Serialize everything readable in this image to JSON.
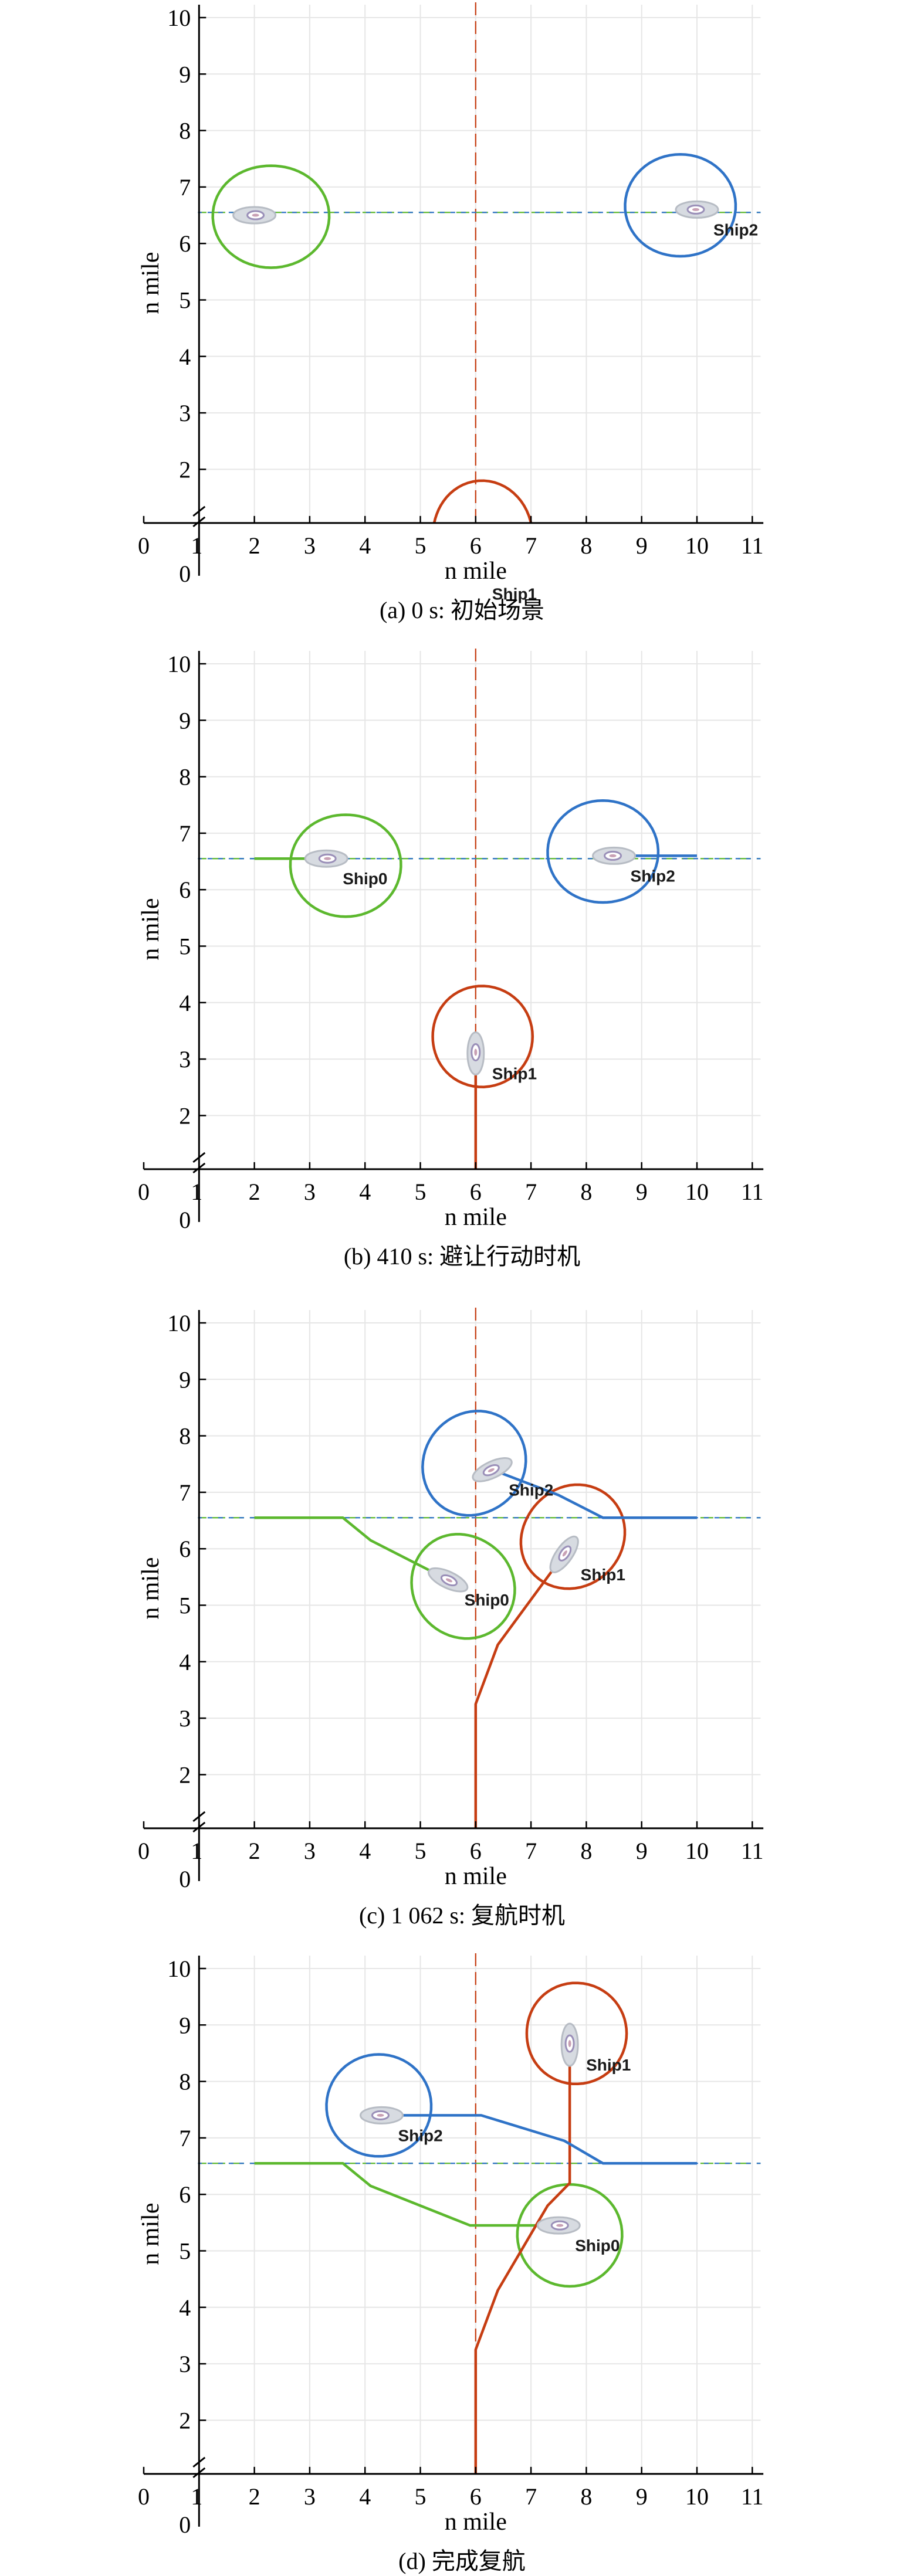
{
  "colors": {
    "ship0": "#5cb82e",
    "ship1": "#c63d12",
    "ship2": "#2f73c7",
    "grid": "#e6e6e6",
    "axis": "#000000",
    "vessel": "#b7bcc4"
  },
  "chart_data": [
    {
      "type": "scatter",
      "caption": "(a) 0 s: 初始场景",
      "xlabel": "n mile",
      "ylabel": "n mile",
      "xlim": [
        0,
        11.2
      ],
      "ylim": [
        0,
        10.2
      ],
      "x_ticks": [
        "0",
        "1",
        "2",
        "3",
        "4",
        "5",
        "6",
        "7",
        "8",
        "9",
        "10",
        "11"
      ],
      "y_ticks": [
        "0",
        "2",
        "3",
        "4",
        "5",
        "6",
        "7",
        "8",
        "9",
        "10"
      ],
      "grid": true,
      "reference_lines": [
        {
          "orientation": "vertical",
          "value": 6,
          "color": "#c63d12",
          "style": "dashed"
        },
        {
          "orientation": "horizontal",
          "value": 6.55,
          "color": "#5cb82e",
          "style": "dashed"
        },
        {
          "orientation": "horizontal",
          "value": 6.55,
          "color": "#2f73c7",
          "style": "dashed"
        }
      ],
      "series": [
        {
          "name": "Ship0",
          "show_label": false,
          "position": [
            2.0,
            6.5
          ],
          "heading": 90,
          "domain_center": [
            2.3,
            6.55
          ],
          "domain_rx": 1.0,
          "domain_ry": 0.95,
          "track": []
        },
        {
          "name": "Ship1",
          "show_label": true,
          "position": [
            6.0,
            0.15
          ],
          "heading": 0,
          "domain_center": [
            6.05,
            0.8
          ],
          "domain_rx": 0.95,
          "domain_ry": 0.95,
          "track": []
        },
        {
          "name": "Ship2",
          "show_label": true,
          "position": [
            10.0,
            6.6
          ],
          "heading": 270,
          "domain_center": [
            9.7,
            6.6
          ],
          "domain_rx": 0.95,
          "domain_ry": 0.95,
          "track": []
        }
      ]
    },
    {
      "type": "scatter",
      "caption": "(b) 410 s: 避让行动时机",
      "xlabel": "n mile",
      "ylabel": "n mile",
      "xlim": [
        0,
        11.2
      ],
      "ylim": [
        0,
        10.2
      ],
      "x_ticks": [
        "0",
        "1",
        "2",
        "3",
        "4",
        "5",
        "6",
        "7",
        "8",
        "9",
        "10",
        "11"
      ],
      "y_ticks": [
        "0",
        "2",
        "3",
        "4",
        "5",
        "6",
        "7",
        "8",
        "9",
        "10"
      ],
      "grid": true,
      "reference_lines": [
        {
          "orientation": "vertical",
          "value": 6,
          "color": "#c63d12",
          "style": "dashed"
        },
        {
          "orientation": "horizontal",
          "value": 6.55,
          "color": "#5cb82e",
          "style": "dashed"
        },
        {
          "orientation": "horizontal",
          "value": 6.55,
          "color": "#2f73c7",
          "style": "dashed"
        }
      ],
      "series": [
        {
          "name": "Ship0",
          "show_label": true,
          "position": [
            3.3,
            6.55
          ],
          "heading": 90,
          "domain_center": [
            3.65,
            6.5
          ],
          "domain_rx": 0.95,
          "domain_ry": 0.95,
          "track": [
            [
              2.0,
              6.55
            ],
            [
              3.3,
              6.55
            ]
          ]
        },
        {
          "name": "Ship1",
          "show_label": true,
          "position": [
            6.0,
            3.1
          ],
          "heading": 0,
          "domain_center": [
            6.05,
            3.4
          ],
          "domain_rx": 0.95,
          "domain_ry": 0.85,
          "track": [
            [
              6.0,
              0.15
            ],
            [
              6.0,
              3.1
            ]
          ]
        },
        {
          "name": "Ship2",
          "show_label": true,
          "position": [
            8.5,
            6.6
          ],
          "heading": 270,
          "domain_center": [
            8.3,
            6.6
          ],
          "domain_rx": 0.95,
          "domain_ry": 0.95,
          "track": [
            [
              10.0,
              6.6
            ],
            [
              8.5,
              6.6
            ]
          ]
        }
      ]
    },
    {
      "type": "scatter",
      "caption": "(c) 1 062 s: 复航时机",
      "xlabel": "n mile",
      "ylabel": "n mile",
      "xlim": [
        0,
        11.2
      ],
      "ylim": [
        0,
        10.2
      ],
      "x_ticks": [
        "0",
        "1",
        "2",
        "3",
        "4",
        "5",
        "6",
        "7",
        "8",
        "9",
        "10",
        "11"
      ],
      "y_ticks": [
        "0",
        "2",
        "3",
        "4",
        "5",
        "6",
        "7",
        "8",
        "9",
        "10"
      ],
      "grid": true,
      "reference_lines": [
        {
          "orientation": "vertical",
          "value": 6,
          "color": "#c63d12",
          "style": "dashed"
        },
        {
          "orientation": "horizontal",
          "value": 6.55,
          "color": "#5cb82e",
          "style": "dashed"
        },
        {
          "orientation": "horizontal",
          "value": 6.55,
          "color": "#2f73c7",
          "style": "dashed"
        }
      ],
      "series": [
        {
          "name": "Ship0",
          "show_label": true,
          "position": [
            5.5,
            5.45
          ],
          "heading": 115,
          "domain_center": [
            5.8,
            5.4
          ],
          "domain_rx": 0.9,
          "domain_ry": 0.95,
          "track": [
            [
              2.0,
              6.55
            ],
            [
              3.6,
              6.55
            ],
            [
              4.1,
              6.15
            ],
            [
              5.5,
              5.45
            ]
          ]
        },
        {
          "name": "Ship1",
          "show_label": true,
          "position": [
            7.6,
            5.9
          ],
          "heading": 35,
          "domain_center": [
            7.7,
            6.25
          ],
          "domain_rx": 0.95,
          "domain_ry": 0.9,
          "track": [
            [
              6.0,
              0.15
            ],
            [
              6.0,
              3.25
            ],
            [
              6.4,
              4.3
            ],
            [
              7.6,
              5.9
            ]
          ]
        },
        {
          "name": "Ship2",
          "show_label": true,
          "position": [
            6.3,
            7.4
          ],
          "heading": 245,
          "domain_center": [
            6.0,
            7.45
          ],
          "domain_rx": 0.9,
          "domain_ry": 0.95,
          "track": [
            [
              10.0,
              6.55
            ],
            [
              8.3,
              6.55
            ],
            [
              7.5,
              6.95
            ],
            [
              6.3,
              7.4
            ]
          ]
        }
      ]
    },
    {
      "type": "scatter",
      "caption": "(d) 完成复航",
      "xlabel": "n mile",
      "ylabel": "n mile",
      "xlim": [
        0,
        11.2
      ],
      "ylim": [
        0,
        10.2
      ],
      "x_ticks": [
        "0",
        "1",
        "2",
        "3",
        "4",
        "5",
        "6",
        "7",
        "8",
        "9",
        "10",
        "11"
      ],
      "y_ticks": [
        "0",
        "2",
        "3",
        "4",
        "5",
        "6",
        "7",
        "8",
        "9",
        "10"
      ],
      "grid": true,
      "reference_lines": [
        {
          "orientation": "vertical",
          "value": 6,
          "color": "#c63d12",
          "style": "dashed"
        },
        {
          "orientation": "horizontal",
          "value": 6.55,
          "color": "#5cb82e",
          "style": "dashed"
        },
        {
          "orientation": "horizontal",
          "value": 6.55,
          "color": "#2f73c7",
          "style": "dashed"
        }
      ],
      "series": [
        {
          "name": "Ship0",
          "show_label": true,
          "position": [
            7.5,
            5.45
          ],
          "heading": 90,
          "domain_center": [
            7.7,
            5.35
          ],
          "domain_rx": 0.9,
          "domain_ry": 0.95,
          "track": [
            [
              2.0,
              6.55
            ],
            [
              3.6,
              6.55
            ],
            [
              4.1,
              6.15
            ],
            [
              5.9,
              5.45
            ],
            [
              7.5,
              5.45
            ]
          ]
        },
        {
          "name": "Ship1",
          "show_label": true,
          "position": [
            7.7,
            8.65
          ],
          "heading": 0,
          "domain_center": [
            7.75,
            8.85
          ],
          "domain_rx": 0.95,
          "domain_ry": 0.85,
          "track": [
            [
              6.0,
              0.15
            ],
            [
              6.0,
              3.25
            ],
            [
              6.4,
              4.3
            ],
            [
              7.3,
              5.8
            ],
            [
              7.7,
              6.2
            ],
            [
              7.7,
              8.65
            ]
          ]
        },
        {
          "name": "Ship2",
          "show_label": true,
          "position": [
            4.3,
            7.4
          ],
          "heading": 270,
          "domain_center": [
            4.25,
            7.5
          ],
          "domain_rx": 0.9,
          "domain_ry": 0.95,
          "track": [
            [
              10.0,
              6.55
            ],
            [
              8.3,
              6.55
            ],
            [
              7.6,
              6.95
            ],
            [
              6.1,
              7.4
            ],
            [
              4.3,
              7.4
            ]
          ]
        }
      ]
    }
  ]
}
